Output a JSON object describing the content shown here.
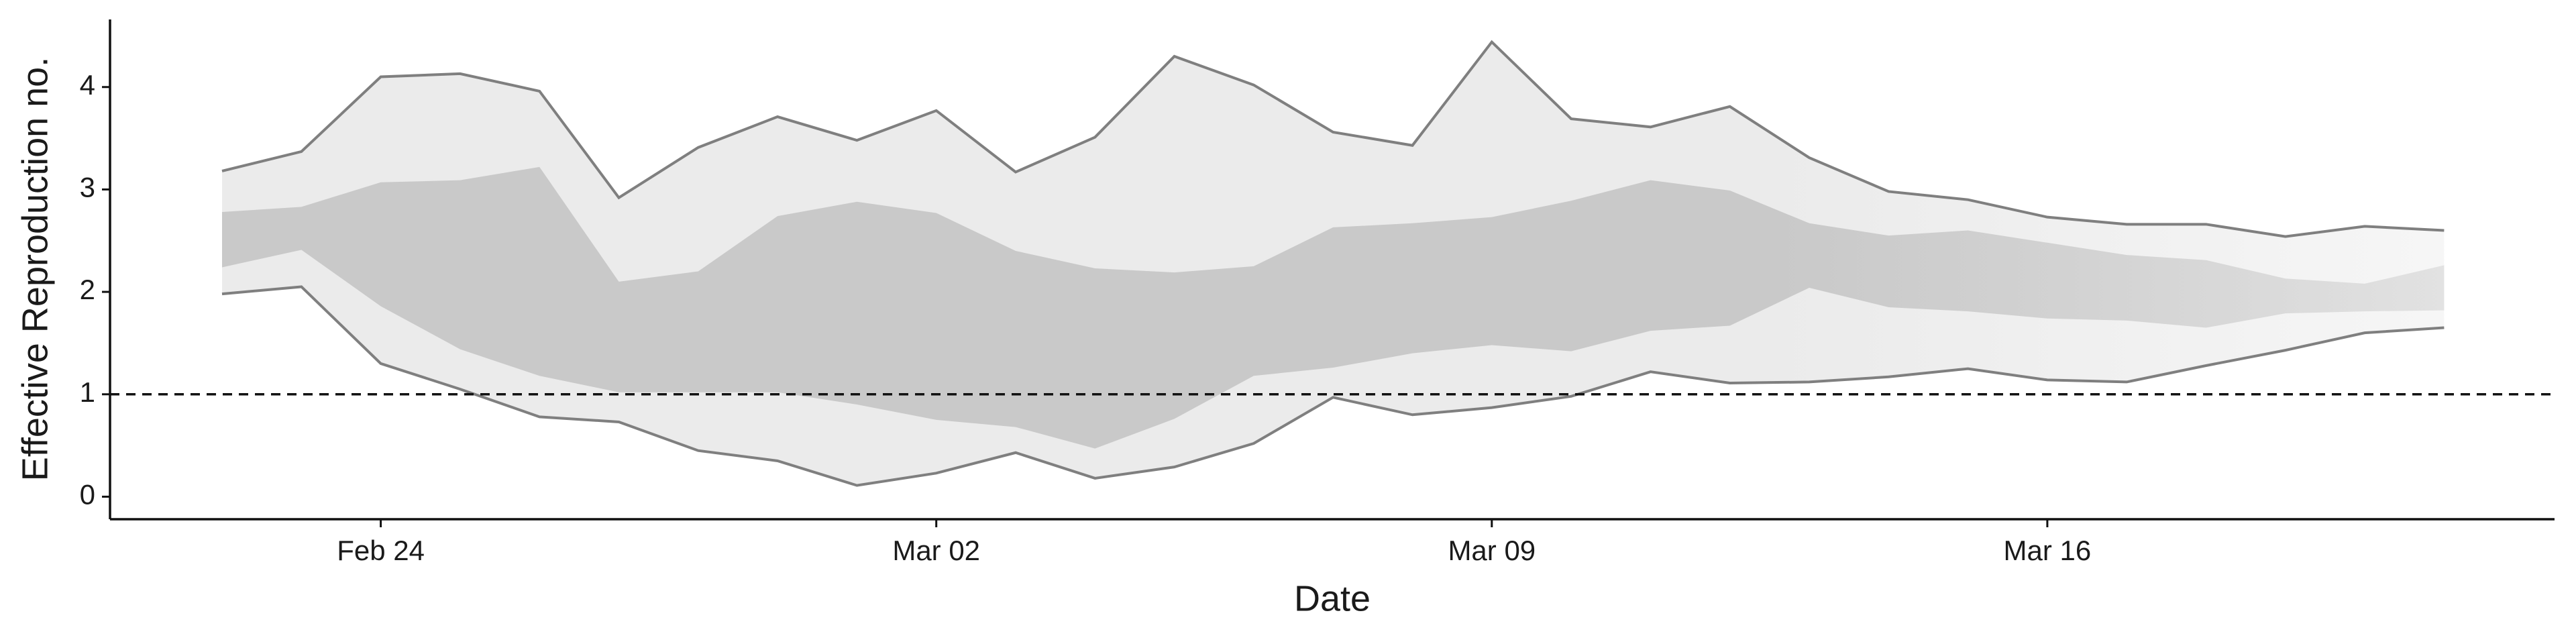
{
  "chart_data": {
    "type": "band",
    "x_label": "Date",
    "y_label": "Effective Reproduction no.",
    "x": [
      "Feb 22",
      "Feb 23",
      "Feb 24",
      "Feb 25",
      "Feb 26",
      "Feb 27",
      "Feb 28",
      "Feb 29",
      "Mar 01",
      "Mar 02",
      "Mar 03",
      "Mar 04",
      "Mar 05",
      "Mar 06",
      "Mar 07",
      "Mar 08",
      "Mar 09",
      "Mar 10",
      "Mar 11",
      "Mar 12",
      "Mar 13",
      "Mar 14",
      "Mar 15",
      "Mar 16",
      "Mar 17",
      "Mar 18",
      "Mar 19",
      "Mar 20",
      "Mar 21"
    ],
    "xticks": [
      "Feb 24",
      "Mar 02",
      "Mar 09",
      "Mar 16"
    ],
    "ylim": [
      -0.22,
      4.66
    ],
    "yticks": [
      0,
      1,
      2,
      3,
      4
    ],
    "bands": [
      {
        "color": "#ebebeb",
        "lower": [
          1.98,
          2.05,
          1.3,
          1.05,
          0.78,
          0.73,
          0.45,
          0.35,
          0.11,
          0.23,
          0.43,
          0.18,
          0.29,
          0.52,
          0.97,
          0.8,
          0.87,
          0.98,
          1.22,
          1.11,
          1.12,
          1.17,
          1.25,
          1.14,
          1.12,
          1.28,
          1.43,
          1.6,
          1.65
        ],
        "upper": [
          3.18,
          3.37,
          4.1,
          4.13,
          3.96,
          2.92,
          3.41,
          3.71,
          3.48,
          3.77,
          3.17,
          3.51,
          4.3,
          4.02,
          3.56,
          3.43,
          4.44,
          3.69,
          3.61,
          3.81,
          3.31,
          2.98,
          2.9,
          2.73,
          2.66,
          2.66,
          2.54,
          2.64,
          2.6
        ]
      },
      {
        "color": "#c9c9c9",
        "lower": [
          2.24,
          2.41,
          1.86,
          1.44,
          1.18,
          1.02,
          1.02,
          1.02,
          0.9,
          0.75,
          0.68,
          0.47,
          0.76,
          1.18,
          1.26,
          1.4,
          1.48,
          1.42,
          1.62,
          1.67,
          2.04,
          1.85,
          1.81,
          1.74,
          1.72,
          1.65,
          1.79,
          1.81,
          1.82
        ],
        "upper": [
          2.78,
          2.83,
          3.07,
          3.09,
          3.22,
          2.1,
          2.2,
          2.74,
          2.88,
          2.77,
          2.4,
          2.23,
          2.19,
          2.25,
          2.63,
          2.67,
          2.73,
          2.89,
          3.09,
          2.99,
          2.67,
          2.55,
          2.6,
          2.48,
          2.36,
          2.31,
          2.13,
          2.08,
          2.26
        ]
      }
    ],
    "outline_color": "#7f7f7f",
    "reference_line": 1
  }
}
